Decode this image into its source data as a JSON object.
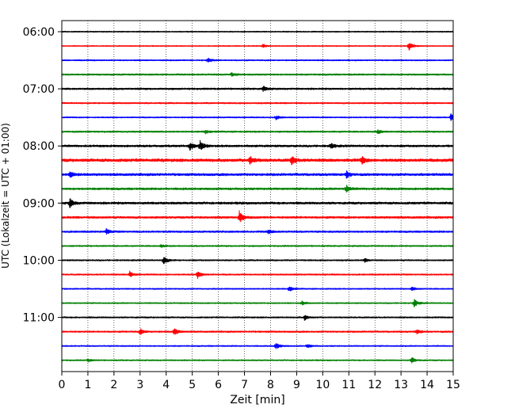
{
  "chart_data": {
    "type": "line",
    "title": "",
    "xlabel": "Zeit  [min]",
    "ylabel": "UTC (Lokalzeit = UTC + 01:00)",
    "xlim": [
      0,
      15
    ],
    "x_ticks": [
      "0",
      "1",
      "2",
      "3",
      "4",
      "5",
      "6",
      "7",
      "8",
      "9",
      "10",
      "11",
      "12",
      "13",
      "14",
      "15"
    ],
    "y_ticks": [
      "06:00",
      "07:00",
      "08:00",
      "09:00",
      "10:00",
      "11:00"
    ],
    "grid": "vertical-dotted",
    "color_cycle": [
      "#000000",
      "#ff0000",
      "#0000ff",
      "#008000"
    ],
    "rows": [
      {
        "time": "06:00",
        "color": "#000000",
        "level": 0.6,
        "events": []
      },
      {
        "time": "06:15",
        "color": "#ff0000",
        "level": 0.55,
        "events": [
          [
            7.7,
            0.5
          ],
          [
            13.3,
            1.4
          ]
        ]
      },
      {
        "time": "06:30",
        "color": "#0000ff",
        "level": 0.7,
        "events": [
          [
            5.6,
            0.7
          ]
        ]
      },
      {
        "time": "06:45",
        "color": "#008000",
        "level": 0.9,
        "events": [
          [
            6.5,
            0.5
          ]
        ]
      },
      {
        "time": "07:00",
        "color": "#000000",
        "level": 1.0,
        "events": [
          [
            7.7,
            0.8
          ]
        ]
      },
      {
        "time": "07:15",
        "color": "#ff0000",
        "level": 0.8,
        "events": []
      },
      {
        "time": "07:30",
        "color": "#0000ff",
        "level": 0.7,
        "events": [
          [
            8.2,
            0.6
          ],
          [
            14.9,
            1.1
          ]
        ]
      },
      {
        "time": "07:45",
        "color": "#008000",
        "level": 0.9,
        "events": [
          [
            5.5,
            0.5
          ],
          [
            12.1,
            0.6
          ]
        ]
      },
      {
        "time": "08:00",
        "color": "#000000",
        "level": 1.2,
        "events": [
          [
            4.9,
            1.2
          ],
          [
            5.3,
            1.6
          ],
          [
            10.3,
            0.8
          ]
        ]
      },
      {
        "time": "08:15",
        "color": "#ff0000",
        "level": 1.7,
        "events": [
          [
            7.2,
            1.2
          ],
          [
            8.8,
            1.2
          ],
          [
            11.5,
            1.0
          ]
        ]
      },
      {
        "time": "08:30",
        "color": "#0000ff",
        "level": 1.4,
        "events": [
          [
            0.3,
            1.0
          ],
          [
            10.9,
            1.0
          ]
        ]
      },
      {
        "time": "08:45",
        "color": "#008000",
        "level": 1.2,
        "events": [
          [
            10.9,
            1.0
          ]
        ]
      },
      {
        "time": "09:00",
        "color": "#000000",
        "level": 1.3,
        "events": [
          [
            0.3,
            1.3
          ]
        ]
      },
      {
        "time": "09:15",
        "color": "#ff0000",
        "level": 1.2,
        "events": [
          [
            6.8,
            1.8
          ]
        ]
      },
      {
        "time": "09:30",
        "color": "#0000ff",
        "level": 1.0,
        "events": [
          [
            1.7,
            0.8
          ],
          [
            7.9,
            0.6
          ]
        ]
      },
      {
        "time": "09:45",
        "color": "#008000",
        "level": 0.8,
        "events": [
          [
            3.8,
            0.4
          ]
        ]
      },
      {
        "time": "10:00",
        "color": "#000000",
        "level": 0.8,
        "events": [
          [
            3.9,
            1.2
          ],
          [
            11.6,
            0.5
          ]
        ]
      },
      {
        "time": "10:15",
        "color": "#ff0000",
        "level": 0.8,
        "events": [
          [
            2.6,
            0.9
          ],
          [
            5.2,
            1.2
          ]
        ]
      },
      {
        "time": "10:30",
        "color": "#0000ff",
        "level": 0.7,
        "events": [
          [
            8.7,
            0.8
          ],
          [
            13.4,
            0.6
          ]
        ]
      },
      {
        "time": "10:45",
        "color": "#008000",
        "level": 0.7,
        "events": [
          [
            13.5,
            1.1
          ],
          [
            9.2,
            0.5
          ]
        ]
      },
      {
        "time": "11:00",
        "color": "#000000",
        "level": 0.8,
        "events": [
          [
            9.3,
            0.7
          ]
        ]
      },
      {
        "time": "11:15",
        "color": "#ff0000",
        "level": 0.9,
        "events": [
          [
            3.0,
            0.9
          ],
          [
            4.3,
            1.1
          ],
          [
            13.6,
            0.6
          ]
        ]
      },
      {
        "time": "11:30",
        "color": "#0000ff",
        "level": 0.7,
        "events": [
          [
            8.2,
            1.0
          ],
          [
            9.4,
            0.6
          ]
        ]
      },
      {
        "time": "11:45",
        "color": "#008000",
        "level": 0.7,
        "events": [
          [
            13.4,
            0.9
          ],
          [
            1.0,
            0.4
          ]
        ]
      }
    ]
  }
}
